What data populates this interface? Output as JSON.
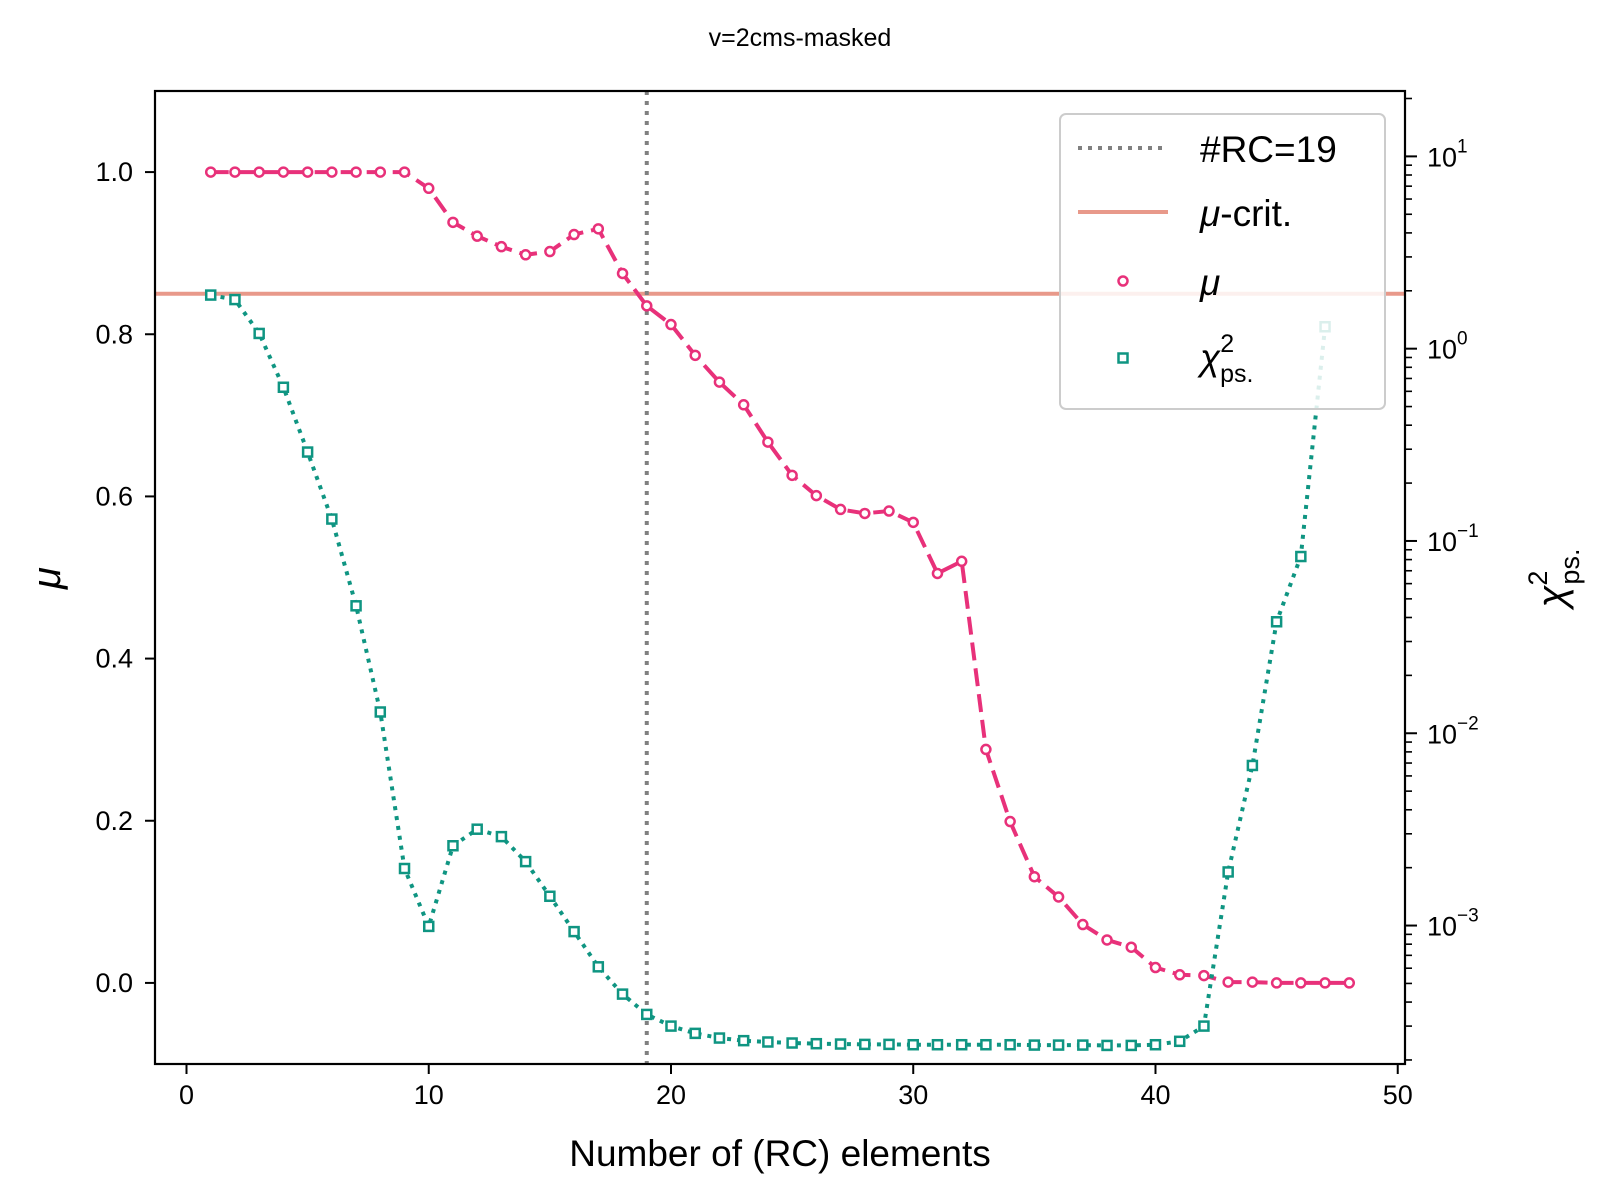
{
  "chart_data": {
    "type": "line",
    "title": "v=2cms-masked",
    "xlabel": "Number of (RC) elements",
    "ylabel": "μ",
    "y2label_base": "χ",
    "y2label_sup": "2",
    "y2label_sub": "ps.",
    "xlim": [
      -1.3,
      50.3
    ],
    "ylim": [
      -0.1,
      1.1
    ],
    "y2lim_log10": [
      -3.72,
      1.34
    ],
    "x_ticks": [
      "0",
      "10",
      "20",
      "30",
      "40",
      "50"
    ],
    "x_tick_values": [
      0,
      10,
      20,
      30,
      40,
      50
    ],
    "y_ticks": [
      "0.0",
      "0.2",
      "0.4",
      "0.6",
      "0.8",
      "1.0"
    ],
    "y_tick_values": [
      0.0,
      0.2,
      0.4,
      0.6,
      0.8,
      1.0
    ],
    "y2_ticks_base": [
      "10",
      "10",
      "10",
      "10",
      "10"
    ],
    "y2_ticks_exp": [
      "1",
      "0",
      "−1",
      "−2",
      "−3"
    ],
    "y2_tick_log_values": [
      1,
      0,
      -1,
      -2,
      -3
    ],
    "vline": {
      "x": 19,
      "label": "#RC=19",
      "color": "#808080"
    },
    "hline": {
      "y": 0.85,
      "label_sym": "μ",
      "label_rest": "-crit.",
      "color": "#e8998a"
    },
    "legend_location": "upper right",
    "series": [
      {
        "name": "μ",
        "axis": "left",
        "color": "#e8317a",
        "marker": "circle",
        "linestyle": "dashed",
        "x": [
          1,
          2,
          3,
          4,
          5,
          6,
          7,
          8,
          9,
          10,
          11,
          12,
          13,
          14,
          15,
          16,
          17,
          18,
          19,
          20,
          21,
          22,
          23,
          24,
          25,
          26,
          27,
          28,
          29,
          30,
          31,
          32,
          33,
          34,
          35,
          36,
          37,
          38,
          39,
          40,
          41,
          42,
          43,
          44,
          45,
          46,
          47,
          48
        ],
        "y": [
          1.0,
          1.0,
          1.0,
          1.0,
          1.0,
          1.0,
          1.0,
          1.0,
          1.0,
          0.98,
          0.938,
          0.921,
          0.908,
          0.898,
          0.902,
          0.923,
          0.93,
          0.875,
          0.835,
          0.812,
          0.774,
          0.741,
          0.713,
          0.667,
          0.626,
          0.601,
          0.584,
          0.579,
          0.582,
          0.568,
          0.505,
          0.52,
          0.288,
          0.199,
          0.131,
          0.106,
          0.072,
          0.053,
          0.044,
          0.019,
          0.01,
          0.009,
          0.001,
          0.001,
          0.0,
          0.0,
          0.0,
          0.0
        ]
      },
      {
        "name": "χ",
        "name_sup": "2",
        "name_sub": "ps.",
        "axis": "right",
        "log": true,
        "color": "#0f9582",
        "marker": "square",
        "linestyle": "dotted",
        "x": [
          1,
          2,
          3,
          4,
          5,
          6,
          7,
          8,
          9,
          10,
          11,
          12,
          13,
          14,
          15,
          16,
          17,
          18,
          19,
          20,
          21,
          22,
          23,
          24,
          25,
          26,
          27,
          28,
          29,
          30,
          31,
          32,
          33,
          34,
          35,
          36,
          37,
          38,
          39,
          40,
          41,
          42,
          43,
          44,
          45,
          46,
          47
        ],
        "y": [
          1.9,
          1.8,
          1.2,
          0.63,
          0.29,
          0.13,
          0.046,
          0.0129,
          0.00198,
          0.00099,
          0.0026,
          0.00317,
          0.0029,
          0.00215,
          0.00142,
          0.00093,
          0.00061,
          0.00044,
          0.000345,
          0.0003,
          0.000275,
          0.00026,
          0.000252,
          0.000248,
          0.000245,
          0.000243,
          0.000242,
          0.000241,
          0.000241,
          0.00024,
          0.00024,
          0.00024,
          0.00024,
          0.00024,
          0.000239,
          0.000239,
          0.000239,
          0.000238,
          0.000238,
          0.00024,
          0.00025,
          0.0003,
          0.0019,
          0.0068,
          0.038,
          0.083,
          1.3
        ]
      }
    ]
  }
}
